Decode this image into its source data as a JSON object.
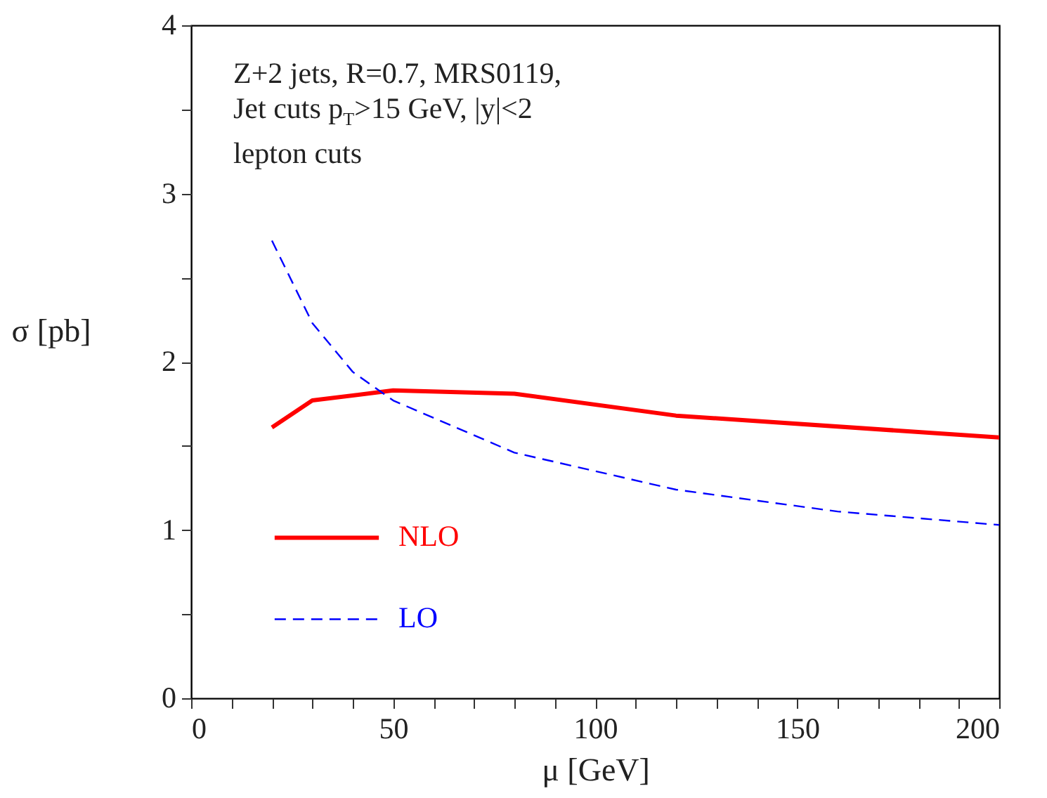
{
  "chart_data": {
    "type": "line",
    "xlabel": "μ [GeV]",
    "ylabel": "σ [pb]",
    "annotations": [
      "Z+2 jets, R=0.7, MRS0119,",
      "Jet cuts p$_{T}$>15 GeV, |y|<2",
      "lepton cuts"
    ],
    "xlim": [
      0,
      200
    ],
    "ylim": [
      0,
      4
    ],
    "xticks": [
      0,
      {
        "value": 10,
        "label": null
      },
      {
        "value": 20,
        "label": null
      },
      {
        "value": 30,
        "label": null
      },
      {
        "value": 40,
        "label": null
      },
      50,
      {
        "value": 60,
        "label": null
      },
      {
        "value": 70,
        "label": null
      },
      {
        "value": 80,
        "label": null
      },
      {
        "value": 90,
        "label": null
      },
      100,
      {
        "value": 110,
        "label": null
      },
      {
        "value": 120,
        "label": null
      },
      {
        "value": 130,
        "label": null
      },
      {
        "value": 140,
        "label": null
      },
      150,
      {
        "value": 160,
        "label": null
      },
      {
        "value": 170,
        "label": null
      },
      {
        "value": 180,
        "label": null
      },
      {
        "value": 190,
        "label": null
      },
      200
    ],
    "yticks": [
      0,
      {
        "value": 0.5,
        "label": null
      },
      1,
      {
        "value": 1.5,
        "label": null
      },
      2,
      {
        "value": 2.5,
        "label": null
      },
      3,
      {
        "value": 3.5,
        "label": null
      },
      4
    ],
    "grid": false,
    "legend": "bottom left",
    "marker": "none",
    "series": [
      {
        "name": "NLO",
        "color": "#ff0000",
        "line_style": "solid",
        "x": [
          20,
          30,
          50,
          80,
          120,
          200
        ],
        "values": [
          1.61,
          1.77,
          1.83,
          1.81,
          1.68,
          1.55
        ]
      },
      {
        "name": "LO",
        "color": "#0000ff",
        "line_style": "dashed",
        "x": [
          20,
          30,
          40,
          50,
          80,
          120,
          160,
          200
        ],
        "values": [
          2.72,
          2.23,
          1.94,
          1.77,
          1.46,
          1.24,
          1.11,
          1.03
        ]
      }
    ]
  }
}
